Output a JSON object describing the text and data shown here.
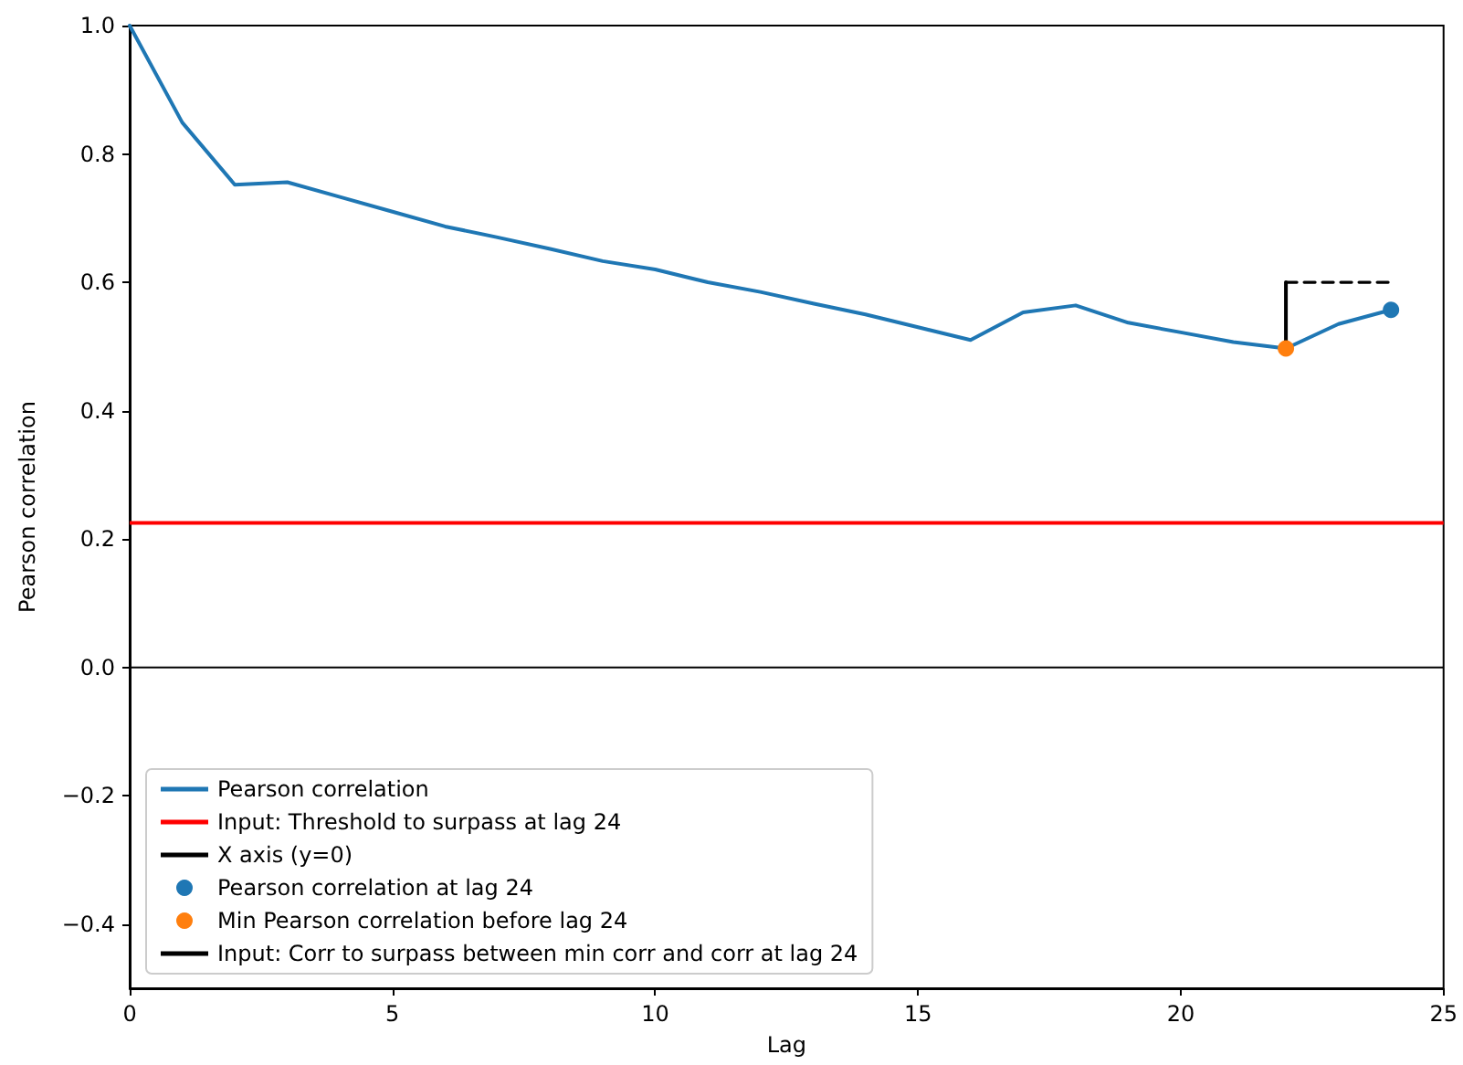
{
  "chart_data": {
    "type": "line",
    "xlabel": "Lag",
    "ylabel": "Pearson correlation",
    "xlim": [
      0,
      25
    ],
    "xticks": [
      0,
      5,
      10,
      15,
      20,
      25
    ],
    "ylim": [
      -0.5,
      1.0
    ],
    "yticks": [
      {
        "value": -0.4,
        "label": "−0.4"
      },
      {
        "value": -0.2,
        "label": "−0.2"
      },
      {
        "value": 0,
        "label": "0.0"
      },
      0.2,
      0.4,
      0.6,
      0.8,
      {
        "value": 1,
        "label": "1.0"
      }
    ],
    "grid": false,
    "legend": "bottom left",
    "marker": "none",
    "line_style": "solid",
    "series": [
      {
        "name": "Pearson correlation",
        "color": "#1f77b4",
        "x": [
          0,
          1,
          2,
          3,
          4,
          5,
          6,
          7,
          8,
          9,
          10,
          11,
          12,
          13,
          14,
          15,
          16,
          17,
          18,
          19,
          20,
          21,
          22,
          23,
          24
        ],
        "values": [
          1.0,
          0.849,
          0.752,
          0.756,
          0.733,
          0.71,
          0.687,
          0.67,
          0.652,
          0.633,
          0.62,
          0.6,
          0.585,
          0.567,
          0.55,
          0.53,
          0.51,
          0.553,
          0.564,
          0.537,
          0.522,
          0.507,
          0.497,
          0.535,
          0.557
        ]
      },
      {
        "name": "Pearson correlation at lag 24",
        "type": "scatter",
        "marker": "circle",
        "color": "#1f77b4",
        "x": [
          24
        ],
        "values": [
          0.557
        ]
      },
      {
        "name": "Min Pearson correlation before lag 24",
        "type": "scatter",
        "marker": "circle",
        "color": "#ff7f0e",
        "x": [
          22
        ],
        "values": [
          0.497
        ]
      },
      {
        "name": "Input: Corr to surpass between min corr and corr at lag 24",
        "color": "#000000",
        "x": [
          22,
          22
        ],
        "values": [
          0.497,
          0.6
        ]
      },
      {
        "color": "#000000",
        "line_style": "dashed",
        "x": [
          22,
          24
        ],
        "values": [
          0.6,
          0.6
        ]
      }
    ],
    "ref_lines": [
      {
        "axis": "y",
        "value": 0.225,
        "label": "Input: Threshold to surpass at lag 24",
        "color": "#ff0000"
      },
      {
        "axis": "y",
        "value": 0,
        "label": "X axis (y=0)",
        "color": "#000000"
      }
    ]
  }
}
